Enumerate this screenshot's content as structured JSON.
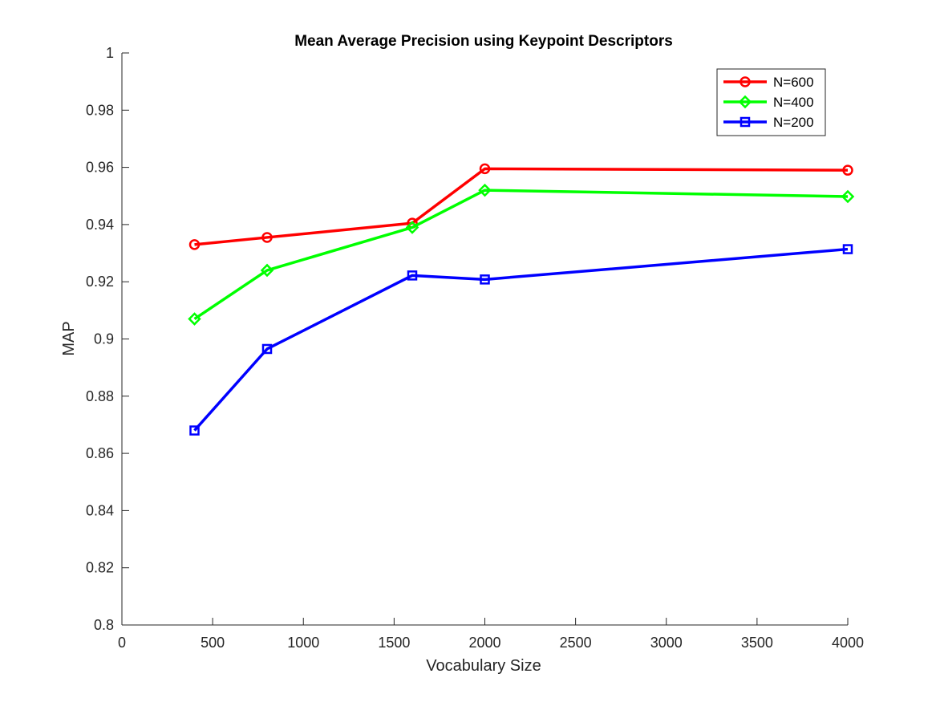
{
  "chart_data": {
    "type": "line",
    "title": "Mean Average Precision using Keypoint Descriptors",
    "xlabel": "Vocabulary Size",
    "ylabel": "MAP",
    "xlim": [
      0,
      4000
    ],
    "ylim": [
      0.8,
      1
    ],
    "xticks": [
      0,
      500,
      1000,
      1500,
      2000,
      2500,
      3000,
      3500,
      4000
    ],
    "yticks": [
      0.8,
      0.82,
      0.84,
      0.86,
      0.88,
      0.9,
      0.92,
      0.94,
      0.96,
      0.98,
      1
    ],
    "xtick_labels": [
      "0",
      "500",
      "1000",
      "1500",
      "2000",
      "2500",
      "3000",
      "3500",
      "4000"
    ],
    "ytick_labels": [
      "0.8",
      "0.82",
      "0.84",
      "0.86",
      "0.88",
      "0.9",
      "0.92",
      "0.94",
      "0.96",
      "0.98",
      "1"
    ],
    "grid": false,
    "legend_position": "top-right",
    "x": [
      400,
      800,
      1600,
      2000,
      4000
    ],
    "series": [
      {
        "name": "N=600",
        "color": "#ff0000",
        "marker": "circle",
        "values": [
          0.933,
          0.9355,
          0.9405,
          0.9595,
          0.959
        ]
      },
      {
        "name": "N=400",
        "color": "#00ff00",
        "marker": "diamond",
        "values": [
          0.907,
          0.924,
          0.939,
          0.952,
          0.9498
        ]
      },
      {
        "name": "N=200",
        "color": "#0000ff",
        "marker": "square",
        "values": [
          0.868,
          0.8965,
          0.9222,
          0.9208,
          0.9314
        ]
      }
    ]
  }
}
